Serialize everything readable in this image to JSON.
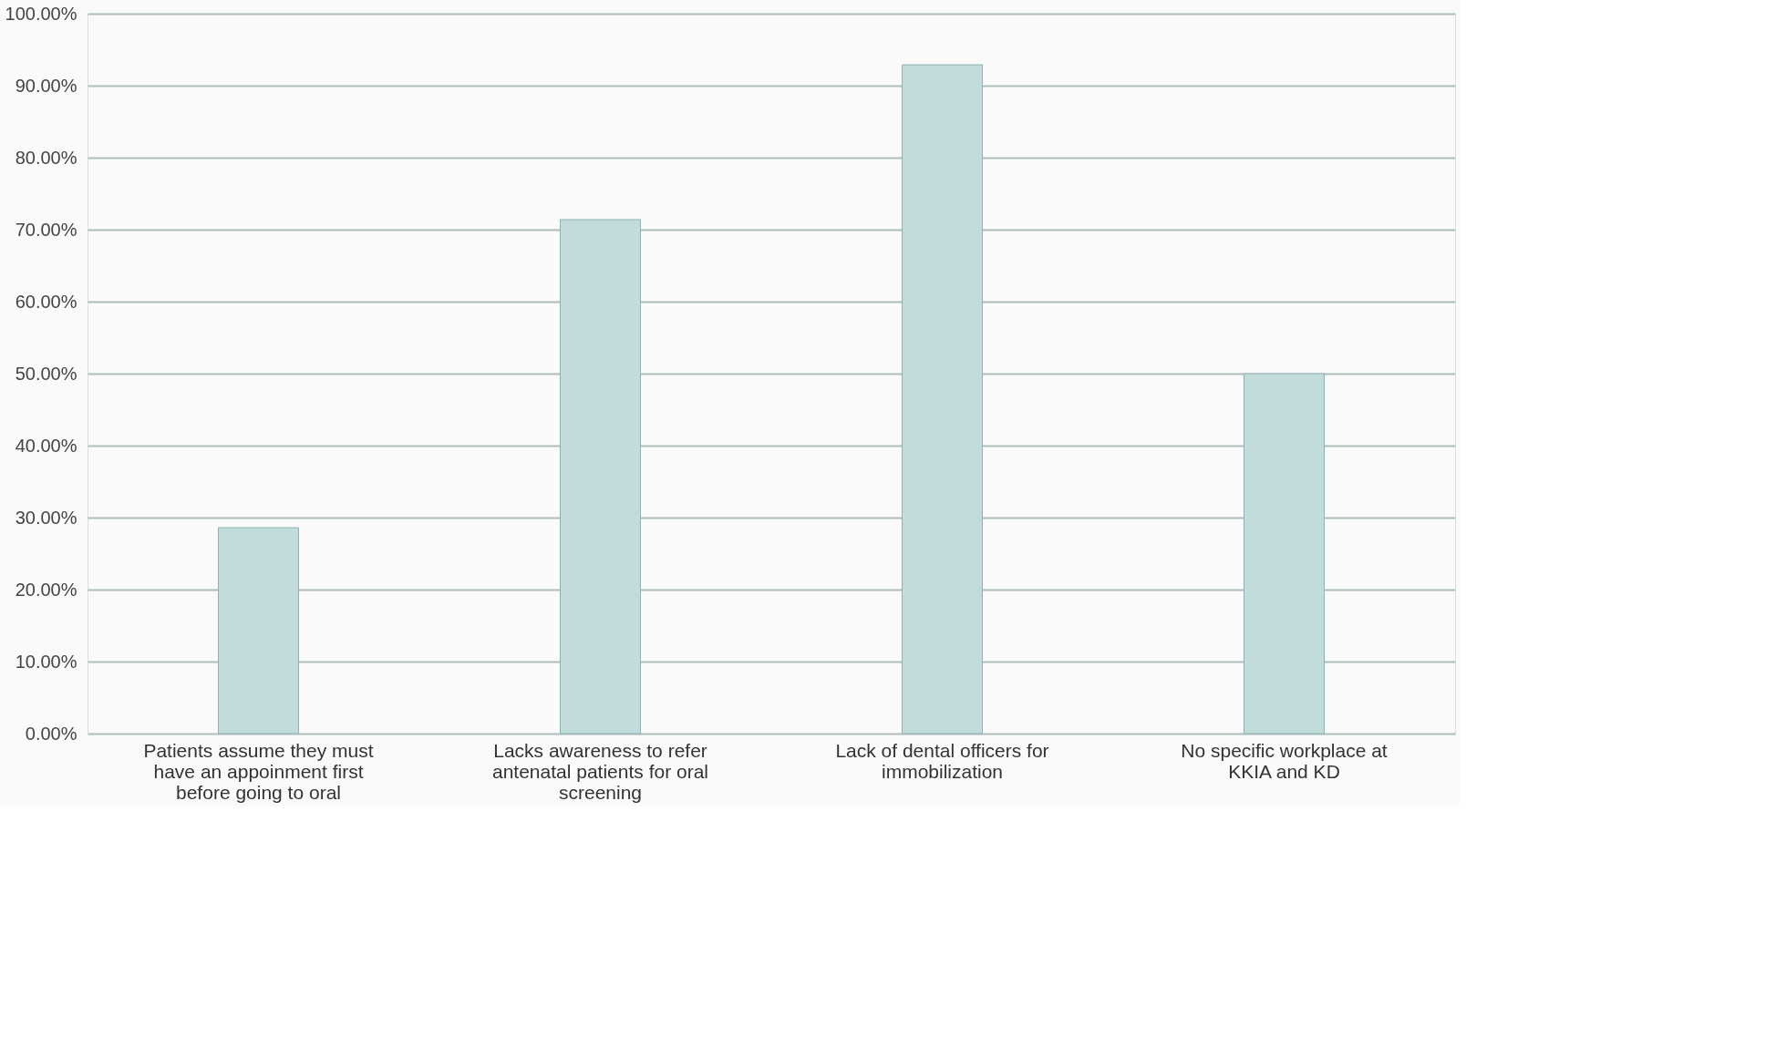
{
  "chart_data": {
    "type": "bar",
    "categories": [
      "Patients assume they must have an appoinment first before going to oral",
      "Lacks awareness to refer antenatal patients for oral screening",
      "Lack of dental officers for immobilization",
      "No specific workplace at KKIA and KD"
    ],
    "values": [
      28.6,
      71.4,
      92.9,
      50.0
    ],
    "color": "#c2dcdc",
    "ylim": [
      0,
      100
    ],
    "yticks": [
      {
        "value": 0,
        "label": "0.00%"
      },
      {
        "value": 10,
        "label": "10.00%"
      },
      {
        "value": 20,
        "label": "20.00%"
      },
      {
        "value": 30,
        "label": "30.00%"
      },
      {
        "value": 40,
        "label": "40.00%"
      },
      {
        "value": 50,
        "label": "50.00%"
      },
      {
        "value": 60,
        "label": "60.00%"
      },
      {
        "value": 70,
        "label": "70.00%"
      },
      {
        "value": 80,
        "label": "80.00%"
      },
      {
        "value": 90,
        "label": "90.00%"
      },
      {
        "value": 100,
        "label": "100.00%"
      }
    ],
    "grid": "y"
  }
}
